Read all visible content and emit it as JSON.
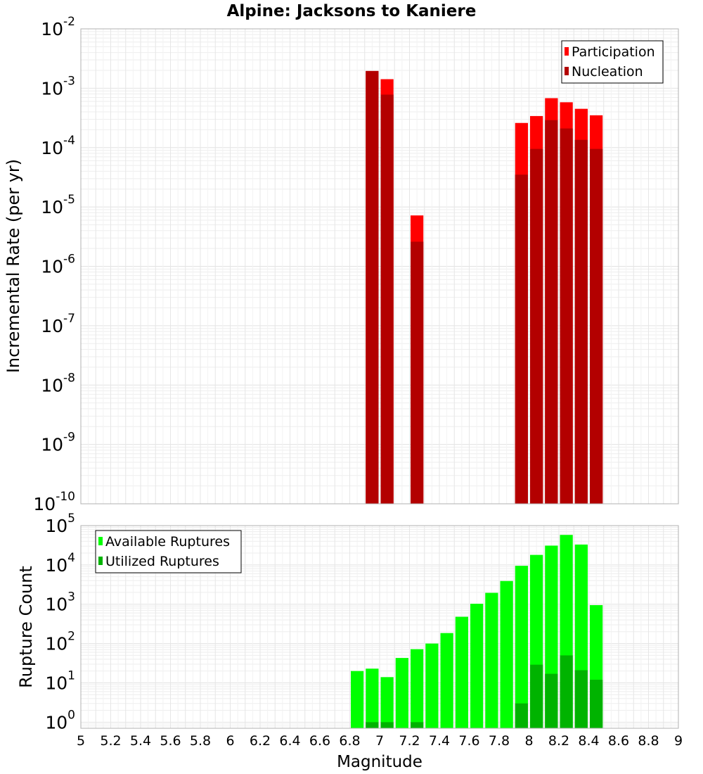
{
  "title": "Alpine: Jacksons to Kaniere",
  "x_axis": {
    "label": "Magnitude",
    "ticks": [
      "5",
      "5.2",
      "5.4",
      "5.6",
      "5.8",
      "6",
      "6.2",
      "6.4",
      "6.6",
      "6.8",
      "7",
      "7.2",
      "7.4",
      "7.6",
      "7.8",
      "8",
      "8.2",
      "8.4",
      "8.6",
      "8.8",
      "9"
    ]
  },
  "chart_data": [
    {
      "type": "bar",
      "scale": "log",
      "ylabel": "Incremental Rate (per yr)",
      "xlim": [
        5,
        9
      ],
      "ylim": [
        1e-10,
        0.01
      ],
      "y_ticks": [
        {
          "base": "10",
          "exp": "-2"
        },
        {
          "base": "10",
          "exp": "-3"
        },
        {
          "base": "10",
          "exp": "-4"
        },
        {
          "base": "10",
          "exp": "-5"
        },
        {
          "base": "10",
          "exp": "-6"
        },
        {
          "base": "10",
          "exp": "-7"
        },
        {
          "base": "10",
          "exp": "-8"
        },
        {
          "base": "10",
          "exp": "-9"
        },
        {
          "base": "10",
          "exp": "-10"
        }
      ],
      "legend_position": "top-right",
      "grid": true,
      "series": [
        {
          "name": "Participation",
          "color": "#ff0000",
          "x": [
            6.95,
            7.05,
            7.25,
            7.95,
            8.05,
            8.15,
            8.25,
            8.35,
            8.45
          ],
          "values": [
            0.00195,
            0.00142,
            7.2e-06,
            0.00026,
            0.00034,
            0.00068,
            0.00058,
            0.00045,
            0.00035
          ]
        },
        {
          "name": "Nucleation",
          "color": "#b30000",
          "x": [
            6.95,
            7.05,
            7.25,
            7.95,
            8.05,
            8.15,
            8.25,
            8.35,
            8.45
          ],
          "values": [
            0.00195,
            0.00078,
            2.6e-06,
            3.5e-05,
            9.5e-05,
            0.00029,
            0.00021,
            0.000135,
            9.5e-05
          ]
        }
      ]
    },
    {
      "type": "bar",
      "scale": "log",
      "ylabel": "Rupture Count",
      "xlim": [
        5,
        9
      ],
      "ylim": [
        0.7,
        100000.0
      ],
      "y_ticks": [
        {
          "base": "10",
          "exp": "5"
        },
        {
          "base": "10",
          "exp": "4"
        },
        {
          "base": "10",
          "exp": "3"
        },
        {
          "base": "10",
          "exp": "2"
        },
        {
          "base": "10",
          "exp": "1"
        },
        {
          "base": "10",
          "exp": "0"
        }
      ],
      "legend_position": "top-left",
      "grid": true,
      "series": [
        {
          "name": "Available Ruptures",
          "color": "#00ff00",
          "x": [
            6.85,
            6.95,
            7.05,
            7.15,
            7.25,
            7.35,
            7.45,
            7.55,
            7.65,
            7.75,
            7.85,
            7.95,
            8.05,
            8.15,
            8.25,
            8.35,
            8.45
          ],
          "values": [
            20,
            23,
            14,
            43,
            72,
            100,
            185,
            480,
            1030,
            1950,
            3900,
            9500,
            18000,
            31000,
            58000,
            33000,
            950
          ]
        },
        {
          "name": "Utilized Ruptures",
          "color": "#00b300",
          "x": [
            6.95,
            7.05,
            7.25,
            7.95,
            8.05,
            8.15,
            8.25,
            8.35,
            8.45
          ],
          "values": [
            1,
            1,
            1,
            3,
            29,
            17,
            50,
            21,
            12
          ]
        }
      ]
    }
  ]
}
